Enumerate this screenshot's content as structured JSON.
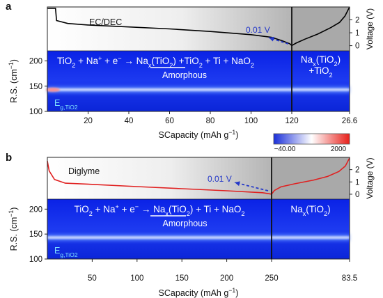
{
  "colorbar": {
    "min_label": "−40.00",
    "max_label": "2000",
    "colors": [
      "#1a2fd9",
      "#ffffff",
      "#e8201a"
    ]
  },
  "chart_data": [
    {
      "type": "heatmap",
      "panel_label": "a",
      "electrolyte_label": "EC/DEC",
      "xlabel_pre": "SCapacity (mAh g",
      "xlabel_exp": "−1",
      "xlabel_post": ")",
      "discharge_xlim": [
        0,
        120
      ],
      "charge_xlim": [
        120,
        26.6
      ],
      "xticks": [
        {
          "value": 20,
          "label": "20"
        },
        {
          "value": 40,
          "label": "40"
        },
        {
          "value": 60,
          "label": "60"
        },
        {
          "value": 80,
          "label": "80"
        },
        {
          "value": 100,
          "label": "100"
        },
        {
          "value": 120,
          "label": "120"
        }
      ],
      "charge_end_label": "26.6",
      "raman": {
        "ylabel_pre": "R.S. (cm",
        "ylabel_exp": "−1",
        "ylabel_post": ")",
        "ylim": [
          100,
          220
        ],
        "yticks": [
          "100",
          "150",
          "200"
        ],
        "band_center": 143
      },
      "voltage": {
        "ylabel": "Voltage (V)",
        "ylim": [
          -0.4,
          3.0
        ],
        "yticks": [
          "0",
          "1",
          "2"
        ],
        "cutoff_label": "0.01 V",
        "discharge": [
          [
            0,
            2.9
          ],
          [
            4,
            2.9
          ],
          [
            4.5,
            1.95
          ],
          [
            10,
            1.72
          ],
          [
            20,
            1.6
          ],
          [
            40,
            1.45
          ],
          [
            60,
            1.3
          ],
          [
            80,
            1.1
          ],
          [
            100,
            0.85
          ],
          [
            110,
            0.65
          ],
          [
            115,
            0.4
          ],
          [
            119,
            0.15
          ],
          [
            120,
            0.01
          ]
        ],
        "charge": [
          [
            0,
            0.01
          ],
          [
            2,
            0.2
          ],
          [
            6,
            0.5
          ],
          [
            12,
            0.9
          ],
          [
            18,
            1.4
          ],
          [
            22,
            1.8
          ],
          [
            24.5,
            2.3
          ],
          [
            26.6,
            3.0
          ]
        ]
      },
      "reaction": {
        "main_html": "TiO<sub>2</sub> + Na<sup>+</sup> + e<sup>−</sup> → Na<sub>x</sub>(TiO<sub>2</sub>) +TiO<sub>2</sub> + Ti + NaO<sub>2</sub>",
        "sub": "Amorphous",
        "charge_line1_html": "Na<sub>x</sub>(TiO<sub>2</sub>)",
        "charge_line2_html": "+TiO<sub>2</sub>",
        "eg_html": "E<sub>g,TiO<sub>2</sub></sub>"
      }
    },
    {
      "type": "heatmap",
      "panel_label": "b",
      "electrolyte_label": "Diglyme",
      "xlabel_pre": "SCapacity (mAh g",
      "xlabel_exp": "−1",
      "xlabel_post": ")",
      "discharge_xlim": [
        0,
        250
      ],
      "charge_xlim": [
        250,
        83.5
      ],
      "xticks": [
        {
          "value": 50,
          "label": "50"
        },
        {
          "value": 100,
          "label": "100"
        },
        {
          "value": 150,
          "label": "150"
        },
        {
          "value": 200,
          "label": "200"
        },
        {
          "value": 250,
          "label": "250"
        }
      ],
      "charge_end_label": "83.5",
      "raman": {
        "ylabel_pre": "R.S. (cm",
        "ylabel_exp": "−1",
        "ylabel_post": ")",
        "ylim": [
          100,
          220
        ],
        "yticks": [
          "100",
          "150",
          "200"
        ],
        "band_center": 143
      },
      "voltage": {
        "ylabel": "Voltage (V)",
        "ylim": [
          -0.4,
          3.0
        ],
        "yticks": [
          "0",
          "1",
          "2"
        ],
        "cutoff_label": "0.01 V",
        "discharge": [
          [
            0,
            2.7
          ],
          [
            2,
            1.9
          ],
          [
            8,
            1.2
          ],
          [
            20,
            0.9
          ],
          [
            50,
            0.8
          ],
          [
            100,
            0.62
          ],
          [
            150,
            0.45
          ],
          [
            200,
            0.28
          ],
          [
            240,
            0.12
          ],
          [
            250,
            0.01
          ]
        ],
        "charge": [
          [
            0,
            0.01
          ],
          [
            3,
            0.3
          ],
          [
            10,
            0.6
          ],
          [
            25,
            0.85
          ],
          [
            45,
            1.15
          ],
          [
            60,
            1.45
          ],
          [
            72,
            1.85
          ],
          [
            79,
            2.3
          ],
          [
            83.5,
            2.95
          ]
        ]
      },
      "reaction": {
        "main_html": "TiO<sub>2</sub> + Na<sup>+</sup> + e<sup>−</sup> → Na<sub>x</sub>(TiO<sub>2</sub>) + Ti + NaO<sub>2</sub>",
        "sub": "Amorphous",
        "charge_line1_html": "Na<sub>x</sub>(TiO<sub>2</sub>)",
        "charge_line2_html": "",
        "eg_html": "E<sub>g,TiO<sub>2</sub></sub>"
      }
    }
  ]
}
